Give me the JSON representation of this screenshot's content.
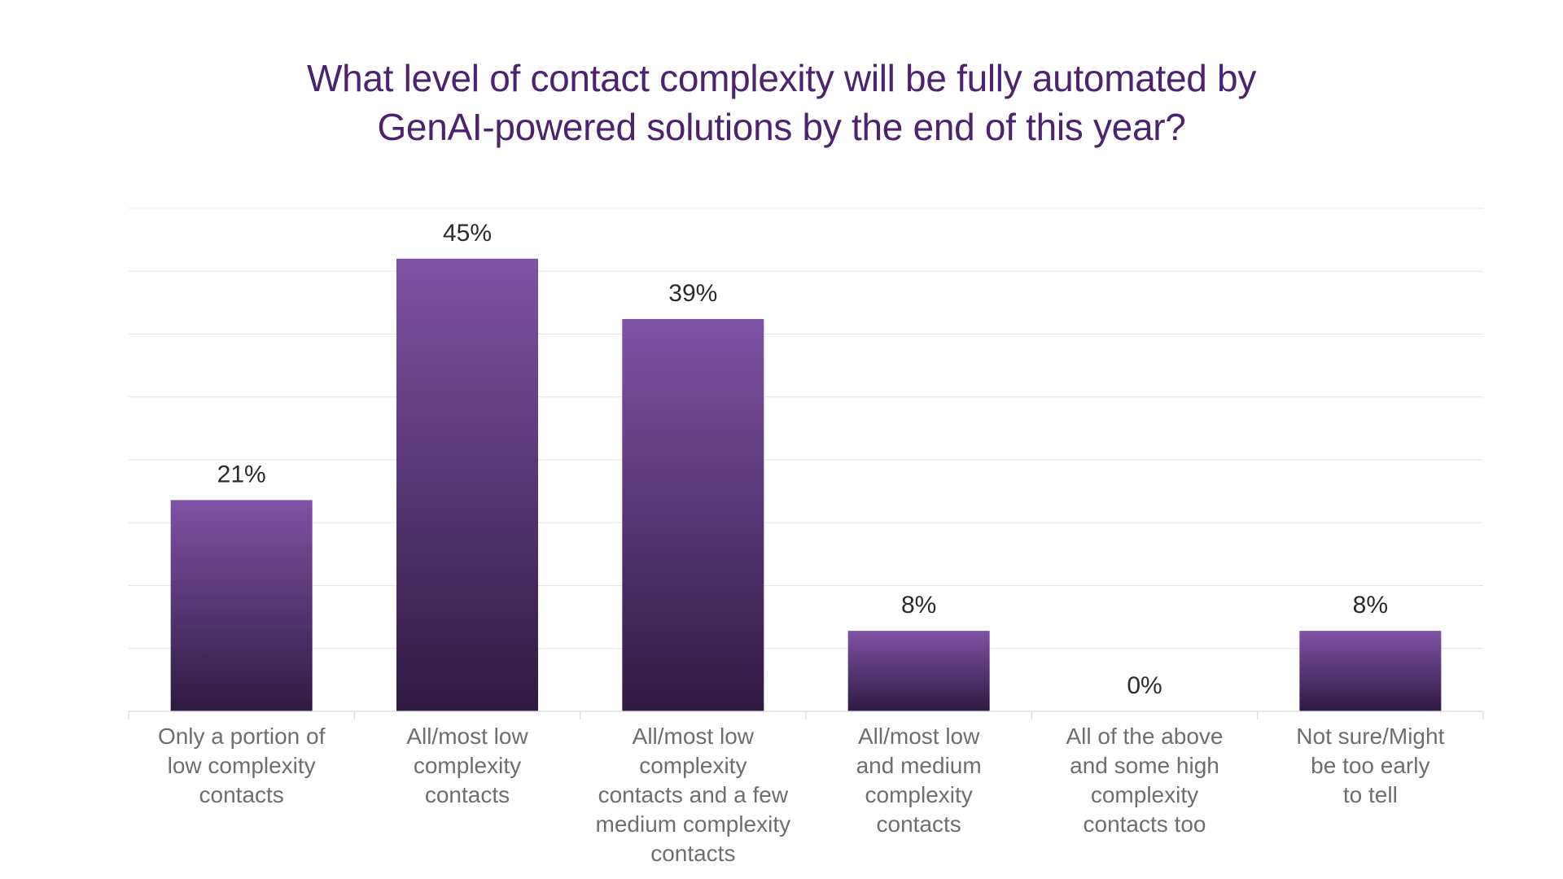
{
  "chart_data": {
    "type": "bar",
    "title_lines": [
      "What level of contact complexity will be fully automated by",
      "GenAI-powered solutions by the end of this year?"
    ],
    "categories": [
      [
        "Only a portion of",
        "low complexity",
        "contacts"
      ],
      [
        "All/most low",
        "complexity",
        "contacts"
      ],
      [
        "All/most low",
        "complexity",
        "contacts and a few",
        "medium complexity",
        "contacts"
      ],
      [
        "All/most low",
        "and medium",
        "complexity",
        "contacts"
      ],
      [
        "All of the above",
        "and some high",
        "complexity",
        "contacts too"
      ],
      [
        "Not sure/Might",
        "be too early",
        "to tell"
      ]
    ],
    "values": [
      21,
      45,
      39,
      8,
      0,
      8
    ],
    "data_labels": [
      "21%",
      "45%",
      "39%",
      "8%",
      "0%",
      "8%"
    ],
    "ylim": [
      0,
      50
    ],
    "grid": true,
    "legend": "none",
    "bar_color_top": "#7f52a5",
    "bar_color_bottom": "#2f1a43",
    "title_color": "#4b2370",
    "label_color": "#2b2b2b",
    "category_color": "#6e6e6e",
    "grid_color": "#e6e6e6"
  }
}
